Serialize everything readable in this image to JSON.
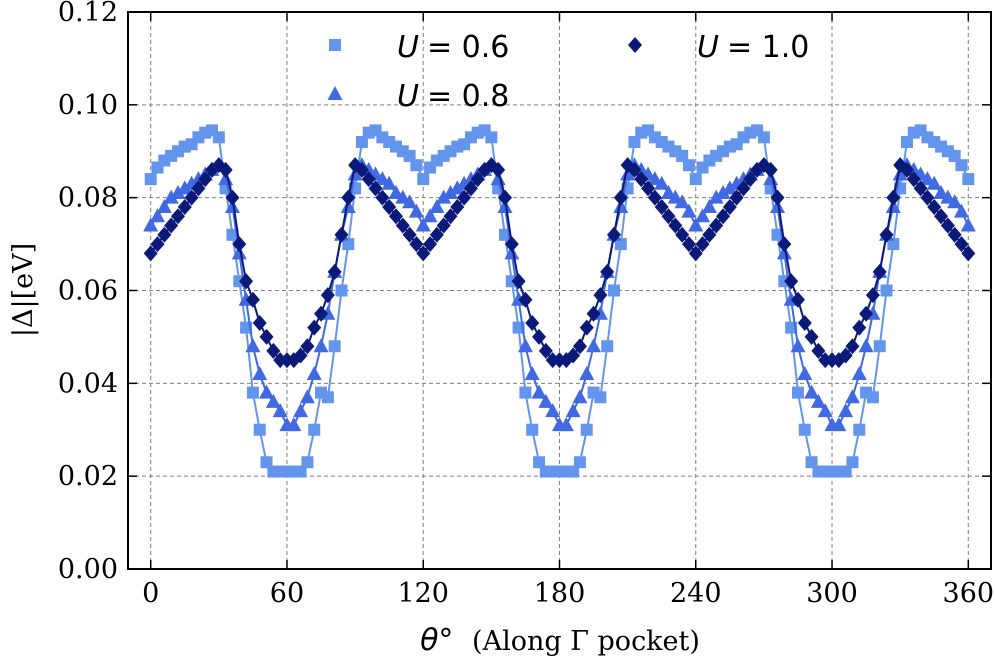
{
  "chart_data": {
    "type": "line",
    "xlabel_symbol": "θ°",
    "xlabel_text": "(Along Γ pocket)",
    "ylabel": "|Δ|[eV]",
    "xlim": [
      -10,
      370
    ],
    "ylim": [
      0.0,
      0.12
    ],
    "xticks": [
      0,
      60,
      120,
      180,
      240,
      300,
      360
    ],
    "yticks": [
      0.0,
      0.02,
      0.04,
      0.06,
      0.08,
      0.1,
      0.12
    ],
    "grid": true,
    "legend": "top-center, two columns",
    "series": [
      {
        "name": "U = 0.6",
        "legend_var": "U",
        "legend_val": "= 0.6",
        "marker": "square",
        "color": "#6495ED",
        "x": [
          0,
          3,
          6,
          9,
          12,
          15,
          18,
          21,
          24,
          27,
          30,
          33,
          36,
          39,
          42,
          45,
          48,
          51,
          54,
          57,
          60,
          63,
          66,
          69,
          72,
          75,
          78,
          81,
          84,
          87,
          90,
          93,
          96,
          99,
          102,
          105,
          108,
          111,
          114,
          117,
          120
        ],
        "y": [
          0.084,
          0.0865,
          0.088,
          0.089,
          0.09,
          0.091,
          0.0915,
          0.093,
          0.094,
          0.0945,
          0.093,
          0.082,
          0.072,
          0.062,
          0.052,
          0.038,
          0.03,
          0.023,
          0.021,
          0.021,
          0.021,
          0.021,
          0.021,
          0.023,
          0.03,
          0.038,
          0.037,
          0.048,
          0.06,
          0.07,
          0.082,
          0.092,
          0.094,
          0.0945,
          0.093,
          0.092,
          0.091,
          0.09,
          0.089,
          0.087,
          0.084
        ]
      },
      {
        "name": "U = 0.8",
        "legend_var": "U",
        "legend_val": "= 0.8",
        "marker": "triangle",
        "color": "#4169E1",
        "x": [
          0,
          3,
          6,
          9,
          12,
          15,
          18,
          21,
          24,
          27,
          30,
          33,
          36,
          39,
          42,
          45,
          48,
          51,
          54,
          57,
          60,
          63,
          66,
          69,
          72,
          75,
          78,
          81,
          84,
          87,
          90,
          93,
          96,
          99,
          102,
          105,
          108,
          111,
          114,
          117,
          120
        ],
        "y": [
          0.074,
          0.076,
          0.078,
          0.08,
          0.081,
          0.082,
          0.083,
          0.084,
          0.085,
          0.086,
          0.087,
          0.084,
          0.078,
          0.068,
          0.058,
          0.048,
          0.042,
          0.038,
          0.036,
          0.034,
          0.031,
          0.031,
          0.034,
          0.037,
          0.042,
          0.048,
          0.055,
          0.064,
          0.072,
          0.078,
          0.085,
          0.087,
          0.086,
          0.085,
          0.084,
          0.083,
          0.081,
          0.08,
          0.079,
          0.077,
          0.074
        ]
      },
      {
        "name": "U = 1.0",
        "legend_var": "U",
        "legend_val": "= 1.0",
        "marker": "diamond",
        "color": "#0B1A78",
        "x": [
          0,
          3,
          6,
          9,
          12,
          15,
          18,
          21,
          24,
          27,
          30,
          33,
          36,
          39,
          42,
          45,
          48,
          51,
          54,
          57,
          60,
          63,
          66,
          69,
          72,
          75,
          78,
          81,
          84,
          87,
          90,
          93,
          96,
          99,
          102,
          105,
          108,
          111,
          114,
          117,
          120
        ],
        "y": [
          0.068,
          0.07,
          0.072,
          0.074,
          0.076,
          0.078,
          0.08,
          0.082,
          0.084,
          0.086,
          0.087,
          0.086,
          0.08,
          0.07,
          0.062,
          0.058,
          0.053,
          0.05,
          0.047,
          0.045,
          0.045,
          0.045,
          0.046,
          0.048,
          0.052,
          0.055,
          0.059,
          0.064,
          0.072,
          0.08,
          0.087,
          0.086,
          0.084,
          0.082,
          0.08,
          0.078,
          0.076,
          0.074,
          0.072,
          0.07,
          0.068
        ]
      }
    ]
  }
}
